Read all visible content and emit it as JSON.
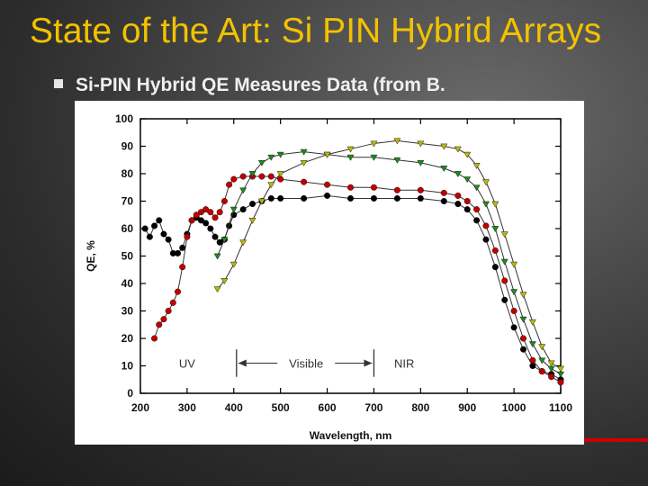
{
  "slide": {
    "title": "State of the Art: Si PIN Hybrid Arrays",
    "bullet": "Si-PIN Hybrid QE Measures Data (from B."
  },
  "colors": {
    "title": "#f2c200",
    "accent_rule": "#d10000"
  },
  "chart_data": {
    "type": "line",
    "xlabel": "Wavelength, nm",
    "ylabel": "QE, %",
    "xlim": [
      200,
      1100
    ],
    "ylim": [
      0,
      100
    ],
    "x_ticks": [
      200,
      300,
      400,
      500,
      600,
      700,
      800,
      900,
      1000,
      1100
    ],
    "y_ticks": [
      0,
      10,
      20,
      30,
      40,
      50,
      60,
      70,
      80,
      90,
      100
    ],
    "annotations": [
      {
        "text": "UV",
        "x": 300,
        "y": 11
      },
      {
        "text": "Visible",
        "x": 555,
        "y": 11
      },
      {
        "text": "NIR",
        "x": 765,
        "y": 11
      }
    ],
    "visible_band": [
      400,
      700
    ],
    "series": [
      {
        "color": "#000000",
        "marker": "circle",
        "points": [
          [
            210,
            60
          ],
          [
            220,
            57
          ],
          [
            230,
            61
          ],
          [
            240,
            63
          ],
          [
            250,
            58
          ],
          [
            260,
            56
          ],
          [
            270,
            51
          ],
          [
            280,
            51
          ],
          [
            290,
            53
          ],
          [
            300,
            58
          ],
          [
            310,
            63
          ],
          [
            320,
            64
          ],
          [
            330,
            63
          ],
          [
            340,
            62
          ],
          [
            350,
            60
          ],
          [
            360,
            57
          ],
          [
            370,
            55
          ],
          [
            380,
            56
          ],
          [
            390,
            61
          ],
          [
            400,
            65
          ],
          [
            420,
            67
          ],
          [
            440,
            69
          ],
          [
            460,
            70
          ],
          [
            480,
            71
          ],
          [
            500,
            71
          ],
          [
            550,
            71
          ],
          [
            600,
            72
          ],
          [
            650,
            71
          ],
          [
            700,
            71
          ],
          [
            750,
            71
          ],
          [
            800,
            71
          ],
          [
            850,
            70
          ],
          [
            880,
            69
          ],
          [
            900,
            67
          ],
          [
            920,
            63
          ],
          [
            940,
            56
          ],
          [
            960,
            46
          ],
          [
            980,
            34
          ],
          [
            1000,
            24
          ],
          [
            1020,
            16
          ],
          [
            1040,
            10
          ],
          [
            1060,
            8
          ],
          [
            1080,
            7
          ],
          [
            1100,
            5
          ]
        ]
      },
      {
        "color": "#c00000",
        "marker": "circle",
        "points": [
          [
            230,
            20
          ],
          [
            240,
            25
          ],
          [
            250,
            27
          ],
          [
            260,
            30
          ],
          [
            270,
            33
          ],
          [
            280,
            37
          ],
          [
            290,
            46
          ],
          [
            300,
            57
          ],
          [
            310,
            63
          ],
          [
            320,
            65
          ],
          [
            330,
            66
          ],
          [
            340,
            67
          ],
          [
            350,
            66
          ],
          [
            360,
            64
          ],
          [
            370,
            66
          ],
          [
            380,
            70
          ],
          [
            390,
            76
          ],
          [
            400,
            78
          ],
          [
            420,
            79
          ],
          [
            440,
            79
          ],
          [
            460,
            79
          ],
          [
            480,
            79
          ],
          [
            500,
            78
          ],
          [
            550,
            77
          ],
          [
            600,
            76
          ],
          [
            650,
            75
          ],
          [
            700,
            75
          ],
          [
            750,
            74
          ],
          [
            800,
            74
          ],
          [
            850,
            73
          ],
          [
            880,
            72
          ],
          [
            900,
            70
          ],
          [
            920,
            67
          ],
          [
            940,
            61
          ],
          [
            960,
            52
          ],
          [
            980,
            41
          ],
          [
            1000,
            30
          ],
          [
            1020,
            20
          ],
          [
            1040,
            12
          ],
          [
            1060,
            8
          ],
          [
            1080,
            6
          ],
          [
            1100,
            4
          ]
        ]
      },
      {
        "color": "#1a8c1a",
        "marker": "triangle-down",
        "points": [
          [
            365,
            50
          ],
          [
            380,
            56
          ],
          [
            400,
            67
          ],
          [
            420,
            74
          ],
          [
            440,
            80
          ],
          [
            460,
            84
          ],
          [
            480,
            86
          ],
          [
            500,
            87
          ],
          [
            550,
            88
          ],
          [
            600,
            87
          ],
          [
            650,
            86
          ],
          [
            700,
            86
          ],
          [
            750,
            85
          ],
          [
            800,
            84
          ],
          [
            850,
            82
          ],
          [
            880,
            80
          ],
          [
            900,
            78
          ],
          [
            920,
            75
          ],
          [
            940,
            69
          ],
          [
            960,
            60
          ],
          [
            980,
            48
          ],
          [
            1000,
            37
          ],
          [
            1020,
            27
          ],
          [
            1040,
            18
          ],
          [
            1060,
            12
          ],
          [
            1080,
            9
          ],
          [
            1100,
            7
          ]
        ]
      },
      {
        "color": "#b8b800",
        "marker": "triangle-down",
        "points": [
          [
            365,
            38
          ],
          [
            380,
            41
          ],
          [
            400,
            47
          ],
          [
            420,
            55
          ],
          [
            440,
            63
          ],
          [
            460,
            70
          ],
          [
            480,
            76
          ],
          [
            500,
            80
          ],
          [
            550,
            84
          ],
          [
            600,
            87
          ],
          [
            650,
            89
          ],
          [
            700,
            91
          ],
          [
            750,
            92
          ],
          [
            800,
            91
          ],
          [
            850,
            90
          ],
          [
            880,
            89
          ],
          [
            900,
            87
          ],
          [
            920,
            83
          ],
          [
            940,
            77
          ],
          [
            960,
            69
          ],
          [
            980,
            58
          ],
          [
            1000,
            47
          ],
          [
            1020,
            36
          ],
          [
            1040,
            26
          ],
          [
            1060,
            17
          ],
          [
            1080,
            11
          ],
          [
            1100,
            9
          ]
        ]
      }
    ]
  }
}
